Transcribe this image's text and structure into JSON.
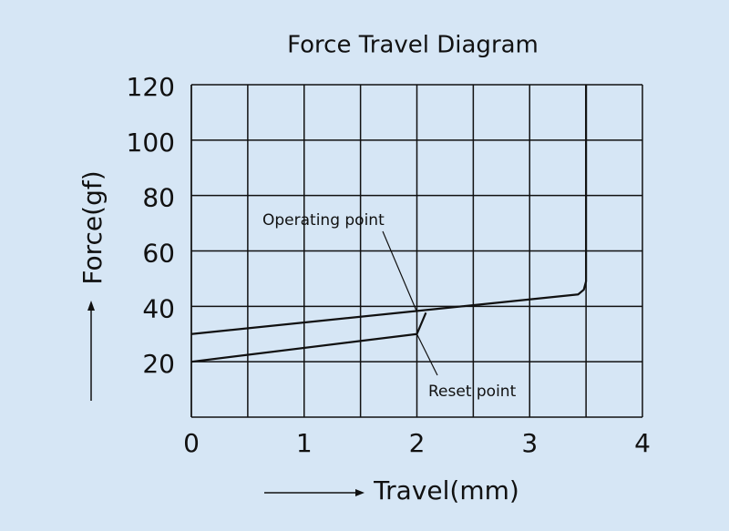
{
  "chart_data": {
    "type": "line",
    "title": "Force Travel Diagram",
    "x_label": "Travel(mm)",
    "y_label": "Force(gf)",
    "xlim": [
      0,
      4
    ],
    "xticks": [
      0,
      1,
      2,
      3,
      4
    ],
    "xgrid": [
      0.5,
      1.5,
      2.5,
      3.5
    ],
    "ylim": [
      0,
      120
    ],
    "yticks": [
      20,
      40,
      60,
      80,
      100,
      120
    ],
    "grid": true,
    "series": [
      {
        "color": "#111111",
        "x": [
          0,
          3.43,
          3.48,
          3.5,
          3.5
        ],
        "values": [
          30,
          44.3,
          46,
          49,
          120
        ]
      },
      {
        "color": "#111111",
        "x": [
          0,
          2,
          2.08
        ],
        "values": [
          20,
          30,
          37.7
        ]
      }
    ],
    "annotations": [
      {
        "text": "Operating point",
        "x": 2,
        "y": 38
      },
      {
        "text": "Reset point",
        "x": 2,
        "y": 30
      }
    ]
  }
}
